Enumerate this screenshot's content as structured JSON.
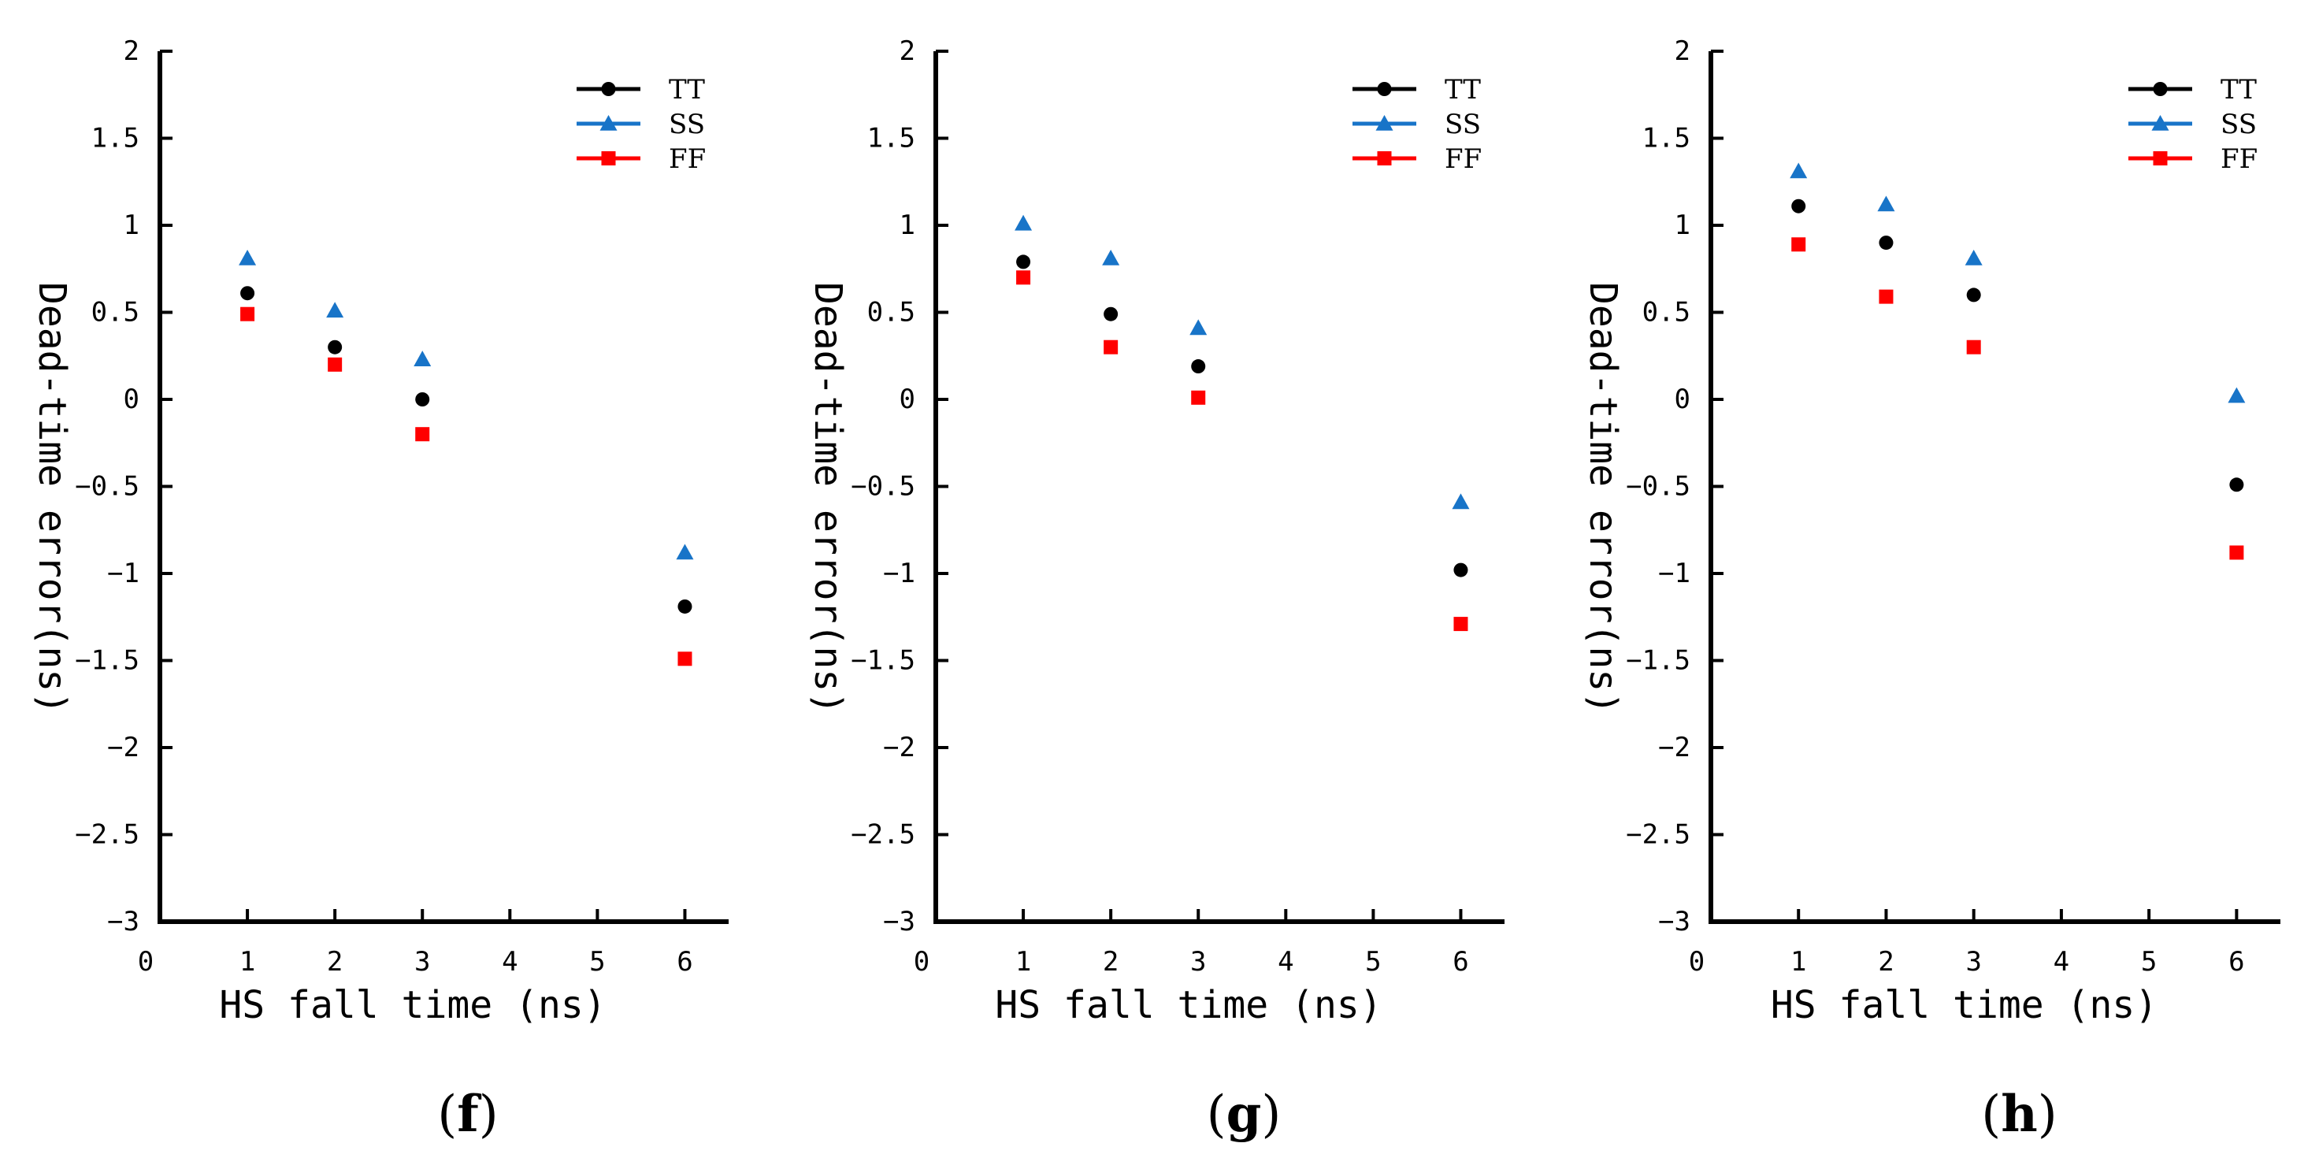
{
  "colors": {
    "TT": "#000000",
    "SS": "#1874c8",
    "FF": "#ff0000",
    "axis": "#000000"
  },
  "chart_data": [
    {
      "type": "scatter",
      "panel_label": "f",
      "xlabel": "HS fall time (ns)",
      "ylabel": "Dead-time error(ns)",
      "xlim": [
        0,
        6.5
      ],
      "ylim": [
        -3,
        2
      ],
      "xticks": [
        "0",
        "1",
        "2",
        "3",
        "4",
        "5",
        "6"
      ],
      "yticks": [
        "2",
        "1.5",
        "1",
        "0.5",
        "0",
        "−0.5",
        "−1",
        "−1.5",
        "−2",
        "−2.5",
        "−3"
      ],
      "x": [
        1,
        2,
        3,
        6
      ],
      "legend_position": "top-right",
      "series": [
        {
          "name": "TT",
          "marker": "circle",
          "values": [
            0.61,
            0.3,
            0.0,
            -1.19
          ]
        },
        {
          "name": "SS",
          "marker": "triangle",
          "values": [
            0.81,
            0.51,
            0.23,
            -0.88
          ]
        },
        {
          "name": "FF",
          "marker": "square",
          "values": [
            0.49,
            0.2,
            -0.2,
            -1.49
          ]
        }
      ]
    },
    {
      "type": "scatter",
      "panel_label": "g",
      "xlabel": "HS fall time (ns)",
      "ylabel": "Dead-time error(ns)",
      "xlim": [
        0,
        6.5
      ],
      "ylim": [
        -3,
        2
      ],
      "xticks": [
        "0",
        "1",
        "2",
        "3",
        "4",
        "5",
        "6"
      ],
      "yticks": [
        "2",
        "1.5",
        "1",
        "0.5",
        "0",
        "−0.5",
        "−1",
        "−1.5",
        "−2",
        "−2.5",
        "−3"
      ],
      "x": [
        1,
        2,
        3,
        6
      ],
      "legend_position": "top-right",
      "series": [
        {
          "name": "TT",
          "marker": "circle",
          "values": [
            0.79,
            0.49,
            0.19,
            -0.98
          ]
        },
        {
          "name": "SS",
          "marker": "triangle",
          "values": [
            1.01,
            0.81,
            0.41,
            -0.59
          ]
        },
        {
          "name": "FF",
          "marker": "square",
          "values": [
            0.7,
            0.3,
            0.01,
            -1.29
          ]
        }
      ]
    },
    {
      "type": "scatter",
      "panel_label": "h",
      "xlabel": "HS fall time (ns)",
      "ylabel": "Dead-time error(ns)",
      "xlim": [
        0,
        6.5
      ],
      "ylim": [
        -3,
        2
      ],
      "xticks": [
        "0",
        "1",
        "2",
        "3",
        "4",
        "5",
        "6"
      ],
      "yticks": [
        "2",
        "1.5",
        "1",
        "0.5",
        "0",
        "−0.5",
        "−1",
        "−1.5",
        "−2",
        "−2.5",
        "−3"
      ],
      "x": [
        1,
        2,
        3,
        6
      ],
      "legend_position": "top-right",
      "series": [
        {
          "name": "TT",
          "marker": "circle",
          "values": [
            1.11,
            0.9,
            0.6,
            -0.49
          ]
        },
        {
          "name": "SS",
          "marker": "triangle",
          "values": [
            1.31,
            1.12,
            0.81,
            0.02
          ]
        },
        {
          "name": "FF",
          "marker": "square",
          "values": [
            0.89,
            0.59,
            0.3,
            -0.88
          ]
        }
      ]
    }
  ]
}
